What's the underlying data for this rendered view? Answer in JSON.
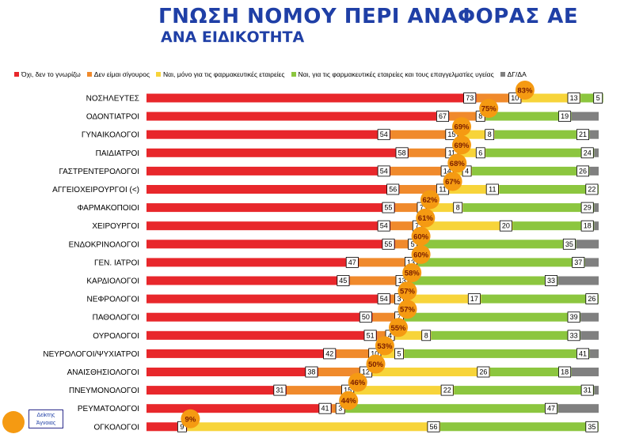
{
  "title": "ΓΝΩΣΗ ΝΟΜΟΥ ΠΕΡΙ ΑΝΑΦΟΡΑΣ ΑΕ",
  "subtitle": "ΑΝΑ ΕΙΔΙΚΟΤΗΤΑ",
  "key_label": "Δείκτης Άγνοιας",
  "colors": {
    "no": "#e8272b",
    "unsure": "#f08a2c",
    "pharma_only": "#f7d43a",
    "pharma_and_hcp": "#8cc63f",
    "dk": "#808080",
    "bubble": "#f59a12",
    "title": "#1f3fa6"
  },
  "chart_data": {
    "type": "bar",
    "orientation": "horizontal",
    "stacked": true,
    "title": "ΓΝΩΣΗ ΝΟΜΟΥ ΠΕΡΙ ΑΝΑΦΟΡΑΣ ΑΕ",
    "subtitle": "ΑΝΑ ΕΙΔΙΚΟΤΗΤΑ",
    "legend_position": "top",
    "categories": [
      "ΝΟΣΗΛΕΥΤΕΣ",
      "ΟΔΟΝΤΙΑΤΡΟΙ",
      "ΓΥΝΑΙΚΟΛΟΓΟΙ",
      "ΠΑΙΔΙΑΤΡΟΙ",
      "ΓΑΣΤΡΕΝΤΕΡΟΛΟΓΟΙ",
      "ΑΓΓΕΙΟΧΕΙΡΟΥΡΓΟΙ (<)",
      "ΦΑΡΜΑΚΟΠΟΙΟΙ",
      "ΧΕΙΡΟΥΡΓΟΙ",
      "ΕΝΔΟΚΡΙΝΟΛΟΓΟΙ",
      "ΓΕΝ. ΙΑΤΡΟΙ",
      "ΚΑΡΔΙΟΛΟΓΟΙ",
      "ΝΕΦΡΟΛΟΓΟΙ",
      "ΠΑΘΟΛΟΓΟΙ",
      "ΟΥΡΟΛΟΓΟΙ",
      "ΝΕΥΡΟΛΟΓΟΙ/ΨΥΧΙΑΤΡΟΙ",
      "ΑΝΑΙΣΘΗΣΙΟΛΟΓΟΙ",
      "ΠΝΕΥΜΟΝΟΛΟΓΟΙ",
      "ΡΕΥΜΑΤΟΛΟΓΟΙ",
      "ΟΓΚΟΛΟΓΟΙ"
    ],
    "series": [
      {
        "name": "Όχι, δεν το γνωρίζω",
        "color": "#e8272b",
        "values": [
          73,
          67,
          54,
          58,
          54,
          56,
          55,
          54,
          55,
          47,
          45,
          54,
          50,
          51,
          42,
          38,
          31,
          41,
          9
        ]
      },
      {
        "name": "Δεν είμαι σίγουρος",
        "color": "#f08a2c",
        "values": [
          10,
          8,
          15,
          11,
          14,
          11,
          7,
          7,
          5,
          13,
          13,
          3,
          7,
          4,
          10,
          12,
          15,
          3,
          0
        ]
      },
      {
        "name": "Ναι, μόνο για τις φαρμακευτικές εταιρείες",
        "color": "#f7d43a",
        "values": [
          13,
          0,
          8,
          6,
          4,
          11,
          8,
          20,
          0,
          0,
          0,
          17,
          0,
          8,
          5,
          26,
          22,
          0,
          56
        ]
      },
      {
        "name": "Ναι, για τις φαρμακευτικές εταιρείες και τους επαγγελματίες υγείας",
        "color": "#8cc63f",
        "values": [
          5,
          19,
          21,
          24,
          26,
          22,
          29,
          18,
          35,
          37,
          33,
          26,
          39,
          33,
          41,
          18,
          31,
          47,
          35
        ]
      },
      {
        "name": "ΔΓ/ΔΑ",
        "color": "#808080",
        "values": [
          0,
          0,
          0,
          0,
          0,
          0,
          0,
          0,
          0,
          0,
          0,
          0,
          0,
          0,
          0,
          0,
          0,
          0,
          0
        ]
      }
    ],
    "value_labels": [
      [
        "73",
        "10",
        "13",
        "5"
      ],
      [
        "67",
        "8",
        "",
        "19"
      ],
      [
        "54",
        "15",
        "8",
        "21"
      ],
      [
        "58",
        "11",
        "6",
        "24"
      ],
      [
        "54",
        "14",
        "4",
        "26"
      ],
      [
        "56",
        "11",
        "11",
        "22"
      ],
      [
        "55",
        "7",
        "8",
        "29"
      ],
      [
        "54",
        "7",
        "20",
        "18"
      ],
      [
        "55",
        "5",
        "",
        "35"
      ],
      [
        "47",
        "13",
        "",
        "37"
      ],
      [
        "45",
        "13",
        "",
        "33"
      ],
      [
        "54",
        "3",
        "17",
        "26"
      ],
      [
        "50",
        "7",
        "",
        "39"
      ],
      [
        "51",
        "4",
        "8",
        "33"
      ],
      [
        "42",
        "10",
        "5",
        "41"
      ],
      [
        "38",
        "12",
        "26",
        "18"
      ],
      [
        "31",
        "15",
        "22",
        "31"
      ],
      [
        "41",
        "3",
        "",
        "47"
      ],
      [
        "9",
        "",
        "56",
        "35"
      ]
    ],
    "ignorance_index": [
      "83%",
      "75%",
      "69%",
      "69%",
      "68%",
      "67%",
      "62%",
      "61%",
      "60%",
      "60%",
      "58%",
      "57%",
      "57%",
      "55%",
      "53%",
      "50%",
      "46%",
      "44%",
      "9%"
    ],
    "xlim": [
      0,
      100
    ]
  }
}
